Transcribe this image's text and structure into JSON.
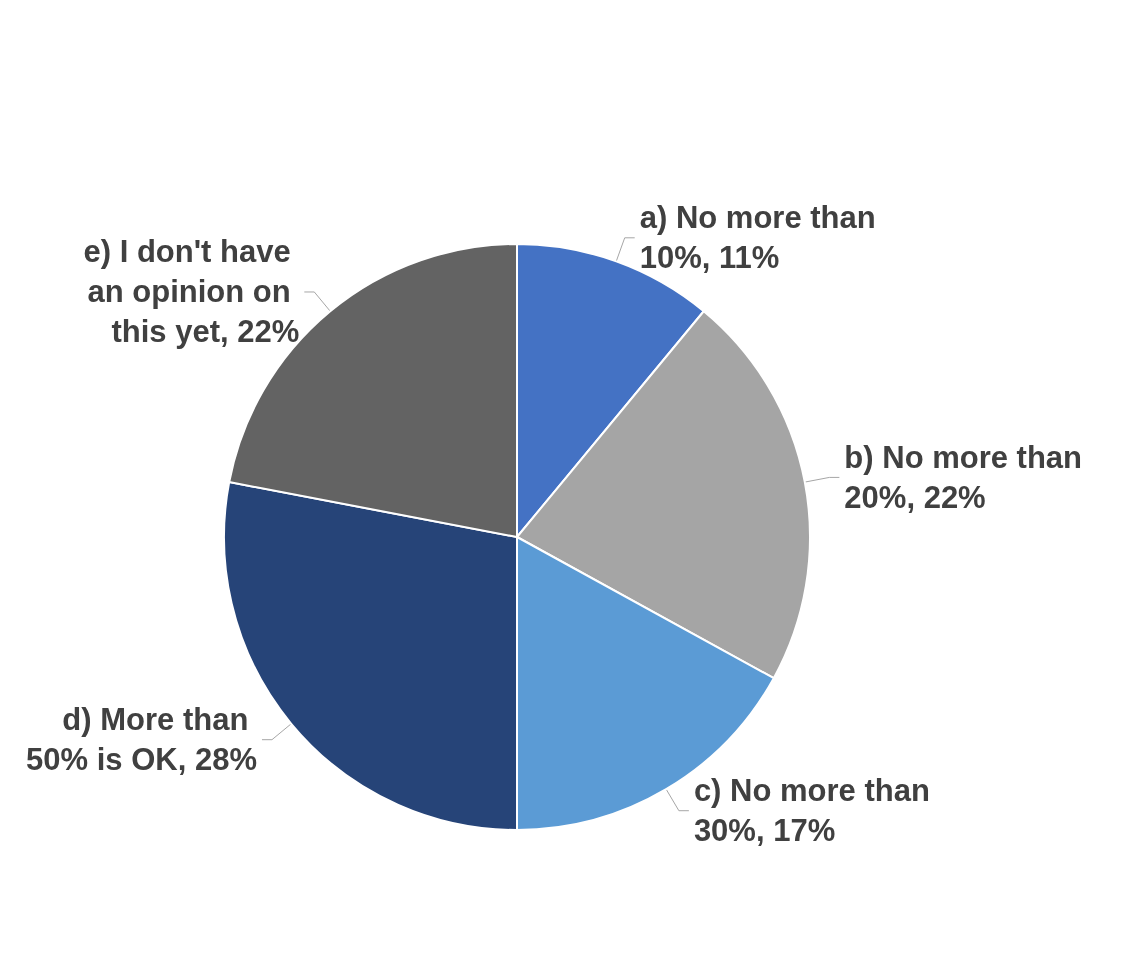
{
  "chart_data": {
    "type": "pie",
    "categories": [
      "a) No more than 10%",
      "b) No more than 20%",
      "c) No more than 30%",
      "d) More than 50% is OK",
      "e) I don't have an opinion on this yet"
    ],
    "values": [
      11,
      22,
      17,
      28,
      22
    ],
    "colors": [
      "#4472c4",
      "#a5a5a5",
      "#5b9bd5",
      "#264478",
      "#636363"
    ],
    "value_labels": [
      "11%",
      "22%",
      "17%",
      "28%",
      "22%"
    ],
    "legend": false
  }
}
